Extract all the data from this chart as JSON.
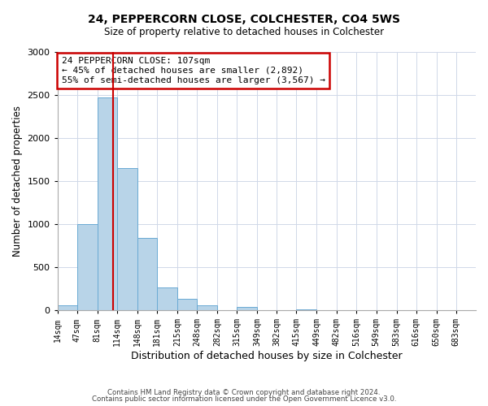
{
  "title": "24, PEPPERCORN CLOSE, COLCHESTER, CO4 5WS",
  "subtitle": "Size of property relative to detached houses in Colchester",
  "xlabel": "Distribution of detached houses by size in Colchester",
  "ylabel": "Number of detached properties",
  "bin_labels": [
    "14sqm",
    "47sqm",
    "81sqm",
    "114sqm",
    "148sqm",
    "181sqm",
    "215sqm",
    "248sqm",
    "282sqm",
    "315sqm",
    "349sqm",
    "382sqm",
    "415sqm",
    "449sqm",
    "482sqm",
    "516sqm",
    "549sqm",
    "583sqm",
    "616sqm",
    "650sqm",
    "683sqm"
  ],
  "bar_values": [
    55,
    1000,
    2475,
    1650,
    840,
    270,
    130,
    55,
    0,
    35,
    0,
    0,
    15,
    0,
    0,
    0,
    0,
    0,
    0,
    0,
    0
  ],
  "bar_color": "#b8d4e8",
  "bar_edgecolor": "#6aaad4",
  "property_line_x": 107,
  "annotation_line0": "24 PEPPERCORN CLOSE: 107sqm",
  "annotation_line1": "← 45% of detached houses are smaller (2,892)",
  "annotation_line2": "55% of semi-detached houses are larger (3,567) →",
  "annotation_box_color": "#ffffff",
  "annotation_box_edgecolor": "#cc0000",
  "vline_color": "#cc0000",
  "ylim": [
    0,
    3000
  ],
  "footer1": "Contains HM Land Registry data © Crown copyright and database right 2024.",
  "footer2": "Contains public sector information licensed under the Open Government Licence v3.0.",
  "bin_edges": [
    14,
    47,
    81,
    114,
    148,
    181,
    215,
    248,
    282,
    315,
    349,
    382,
    415,
    449,
    482,
    516,
    549,
    583,
    616,
    650,
    683,
    716
  ],
  "background_color": "#ffffff",
  "grid_color": "#d0d8e8"
}
